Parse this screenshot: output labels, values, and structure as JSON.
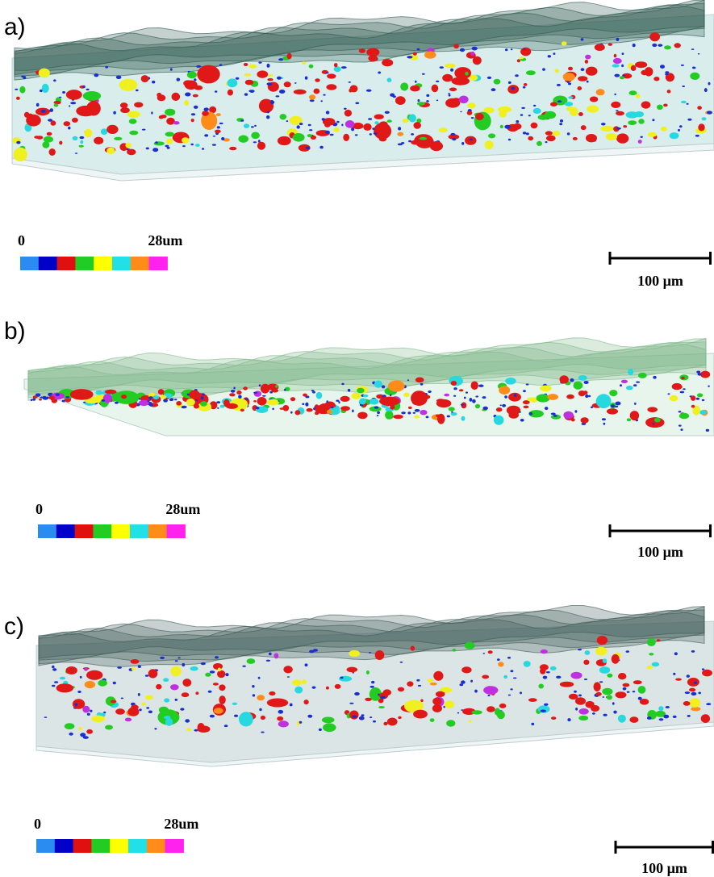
{
  "panels": [
    {
      "label": "a)",
      "colorbar": {
        "min_label": "0",
        "max_label": "28um"
      },
      "scale_bar": {
        "label": "100 µm"
      }
    },
    {
      "label": "b)",
      "colorbar": {
        "min_label": "0",
        "max_label": "28um"
      },
      "scale_bar": {
        "label": "100 µm"
      }
    },
    {
      "label": "c)",
      "colorbar": {
        "min_label": "0",
        "max_label": "28um"
      },
      "scale_bar": {
        "label": "100 µm"
      }
    }
  ]
}
